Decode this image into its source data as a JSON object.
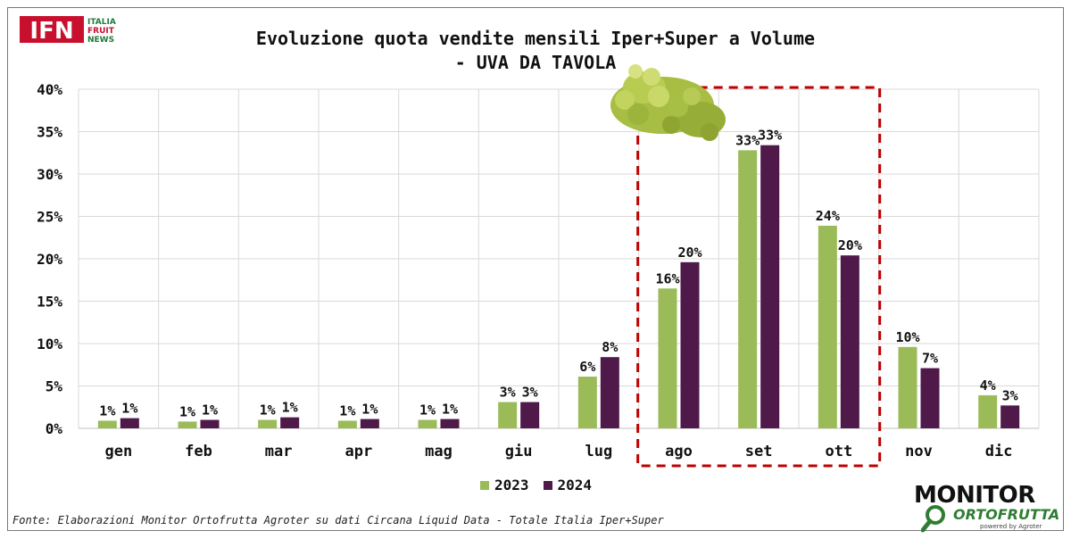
{
  "header": {
    "logo": {
      "main": "IFN",
      "lines": [
        "ITALIA",
        "FRUIT",
        "NEWS"
      ]
    },
    "title_line1": "Evoluzione quota vendite mensili Iper+Super a Volume",
    "title_line2": "- UVA DA TAVOLA"
  },
  "footer": {
    "source": "Fonte: Elaborazioni Monitor Ortofrutta Agroter su dati Circana Liquid Data - Totale Italia Iper+Super",
    "brand": {
      "line1": "MONITOR",
      "line2": "ORTOFRUTTA",
      "line3": "powered by Agroter"
    }
  },
  "colors": {
    "s2023": "#9bbb59",
    "s2024": "#4f1a4a",
    "highlight_box": "#c00000",
    "grid": "#d9d9d9"
  },
  "chart_data": {
    "type": "bar",
    "title": "Evoluzione quota vendite mensili Iper+Super a Volume - UVA DA TAVOLA",
    "categories": [
      "gen",
      "feb",
      "mar",
      "apr",
      "mag",
      "giu",
      "lug",
      "ago",
      "set",
      "ott",
      "nov",
      "dic"
    ],
    "series": [
      {
        "name": "2023",
        "values": [
          0.9,
          0.8,
          1.0,
          0.9,
          1.0,
          3.1,
          6.1,
          16.5,
          32.8,
          23.9,
          9.6,
          3.9
        ],
        "labels": [
          "1%",
          "1%",
          "1%",
          "1%",
          "1%",
          "3%",
          "6%",
          "16%",
          "33%",
          "24%",
          "10%",
          "4%"
        ]
      },
      {
        "name": "2024",
        "values": [
          1.2,
          1.0,
          1.3,
          1.1,
          1.1,
          3.1,
          8.4,
          19.6,
          33.4,
          20.4,
          7.1,
          2.7
        ],
        "labels": [
          "1%",
          "1%",
          "1%",
          "1%",
          "1%",
          "3%",
          "8%",
          "20%",
          "33%",
          "20%",
          "7%",
          "3%"
        ]
      }
    ],
    "y_ticks": [
      "0%",
      "5%",
      "10%",
      "15%",
      "20%",
      "25%",
      "30%",
      "35%",
      "40%"
    ],
    "ylim": [
      0,
      40
    ],
    "grid": true,
    "legend_position": "bottom-center",
    "highlight_categories": [
      "ago",
      "set",
      "ott"
    ],
    "xlabel": "",
    "ylabel": ""
  }
}
